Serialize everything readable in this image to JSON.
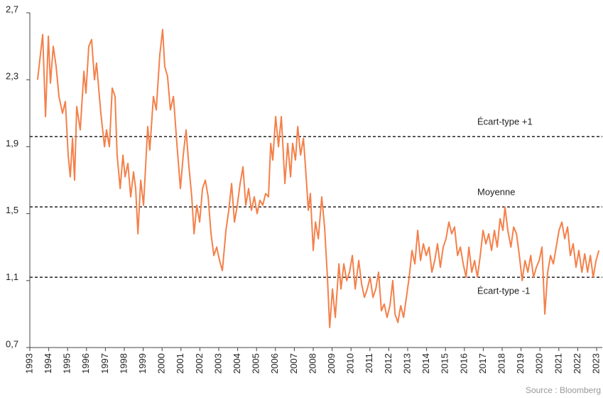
{
  "chart_data": {
    "type": "line",
    "source": "Source : Bloomberg",
    "xlim": [
      1993,
      2023.3
    ],
    "xticks": [
      1993,
      1994,
      1995,
      1996,
      1997,
      1998,
      1999,
      2000,
      2001,
      2002,
      2003,
      2004,
      2005,
      2006,
      2007,
      2008,
      2009,
      2010,
      2011,
      2012,
      2013,
      2014,
      2015,
      2016,
      2017,
      2018,
      2019,
      2020,
      2021,
      2022,
      2023
    ],
    "ylim": [
      0.7,
      2.7
    ],
    "yticks": [
      {
        "value": 0.7,
        "label": "0,7"
      },
      {
        "value": 1.1,
        "label": "1,1"
      },
      {
        "value": 1.5,
        "label": "1,5"
      },
      {
        "value": 1.9,
        "label": "1,9"
      },
      {
        "value": 2.3,
        "label": "2,3"
      },
      {
        "value": 2.7,
        "label": "2,7"
      }
    ],
    "reference_lines": [
      {
        "label": "Écart-type +1",
        "value": 1.96
      },
      {
        "label": "Moyenne",
        "value": 1.54
      },
      {
        "label": "Écart-type -1",
        "value": 1.12
      }
    ],
    "series": [
      {
        "color": "#f4804a",
        "x": [
          1993.41,
          1993.68,
          1993.83,
          1993.98,
          1994.09,
          1994.24,
          1994.39,
          1994.54,
          1994.73,
          1994.88,
          1995.03,
          1995.14,
          1995.26,
          1995.37,
          1995.48,
          1995.67,
          1995.86,
          1995.97,
          1996.12,
          1996.27,
          1996.42,
          1996.53,
          1996.76,
          1996.95,
          1997.06,
          1997.21,
          1997.36,
          1997.51,
          1997.62,
          1997.78,
          1997.93,
          1998.04,
          1998.19,
          1998.34,
          1998.49,
          1998.6,
          1998.72,
          1998.87,
          1999.02,
          1999.24,
          1999.35,
          1999.54,
          1999.69,
          1999.88,
          2000.03,
          2000.14,
          2000.29,
          2000.44,
          2000.6,
          2000.78,
          2000.97,
          2001.12,
          2001.27,
          2001.42,
          2001.57,
          2001.69,
          2001.84,
          2001.99,
          2002.14,
          2002.29,
          2002.44,
          2002.59,
          2002.74,
          2002.89,
          2003.04,
          2003.19,
          2003.38,
          2003.53,
          2003.68,
          2003.83,
          2003.98,
          2004.13,
          2004.28,
          2004.43,
          2004.58,
          2004.73,
          2004.88,
          2005.03,
          2005.18,
          2005.33,
          2005.48,
          2005.63,
          2005.75,
          2005.86,
          2006.01,
          2006.16,
          2006.31,
          2006.42,
          2006.5,
          2006.65,
          2006.8,
          2006.91,
          2007.06,
          2007.18,
          2007.33,
          2007.48,
          2007.59,
          2007.74,
          2007.85,
          2008.0,
          2008.12,
          2008.27,
          2008.45,
          2008.6,
          2008.75,
          2008.87,
          2009.02,
          2009.17,
          2009.36,
          2009.47,
          2009.62,
          2009.77,
          2009.92,
          2010.07,
          2010.22,
          2010.41,
          2010.56,
          2010.71,
          2010.86,
          2011.01,
          2011.16,
          2011.31,
          2011.46,
          2011.61,
          2011.76,
          2011.91,
          2012.06,
          2012.21,
          2012.33,
          2012.48,
          2012.63,
          2012.78,
          2012.93,
          2013.08,
          2013.23,
          2013.38,
          2013.53,
          2013.68,
          2013.83,
          2013.98,
          2014.13,
          2014.28,
          2014.43,
          2014.58,
          2014.73,
          2014.88,
          2015.03,
          2015.18,
          2015.33,
          2015.48,
          2015.64,
          2015.79,
          2015.94,
          2016.09,
          2016.24,
          2016.39,
          2016.54,
          2016.69,
          2016.84,
          2016.99,
          2017.14,
          2017.29,
          2017.44,
          2017.59,
          2017.74,
          2017.89,
          2018.04,
          2018.15,
          2018.3,
          2018.46,
          2018.61,
          2018.76,
          2018.91,
          2019.06,
          2019.21,
          2019.36,
          2019.51,
          2019.66,
          2019.81,
          2019.96,
          2020.11,
          2020.26,
          2020.41,
          2020.56,
          2020.71,
          2020.86,
          2021.01,
          2021.16,
          2021.31,
          2021.46,
          2021.61,
          2021.76,
          2021.91,
          2022.06,
          2022.22,
          2022.37,
          2022.52,
          2022.67,
          2022.82,
          2022.97,
          2023.12
        ],
        "values": [
          2.3,
          2.57,
          2.08,
          2.56,
          2.28,
          2.5,
          2.38,
          2.2,
          2.1,
          2.17,
          1.85,
          1.72,
          1.95,
          1.7,
          2.14,
          2.0,
          2.35,
          2.22,
          2.5,
          2.54,
          2.3,
          2.4,
          2.1,
          1.9,
          2.0,
          1.9,
          2.25,
          2.2,
          1.85,
          1.65,
          1.85,
          1.72,
          1.8,
          1.6,
          1.75,
          1.65,
          1.38,
          1.7,
          1.55,
          2.02,
          1.88,
          2.2,
          2.12,
          2.45,
          2.6,
          2.38,
          2.32,
          2.12,
          2.2,
          1.92,
          1.65,
          1.85,
          2.0,
          1.78,
          1.6,
          1.38,
          1.55,
          1.45,
          1.65,
          1.7,
          1.6,
          1.38,
          1.25,
          1.3,
          1.22,
          1.16,
          1.4,
          1.52,
          1.68,
          1.45,
          1.55,
          1.68,
          1.78,
          1.55,
          1.65,
          1.52,
          1.6,
          1.5,
          1.58,
          1.55,
          1.62,
          1.6,
          1.92,
          1.82,
          2.08,
          1.9,
          2.08,
          1.85,
          1.68,
          1.92,
          1.72,
          1.92,
          1.82,
          2.02,
          1.85,
          1.95,
          1.78,
          1.52,
          1.62,
          1.28,
          1.45,
          1.35,
          1.6,
          1.42,
          1.12,
          0.82,
          1.05,
          0.88,
          1.2,
          1.05,
          1.2,
          1.1,
          1.15,
          1.25,
          1.05,
          1.22,
          1.08,
          1.0,
          1.05,
          1.12,
          1.0,
          1.05,
          1.15,
          0.92,
          0.96,
          0.88,
          0.95,
          1.1,
          0.9,
          0.85,
          0.95,
          0.88,
          1.0,
          1.12,
          1.28,
          1.2,
          1.4,
          1.22,
          1.32,
          1.25,
          1.3,
          1.15,
          1.22,
          1.32,
          1.18,
          1.3,
          1.35,
          1.45,
          1.38,
          1.42,
          1.25,
          1.3,
          1.2,
          1.12,
          1.3,
          1.15,
          1.22,
          1.12,
          1.25,
          1.4,
          1.32,
          1.38,
          1.28,
          1.4,
          1.3,
          1.47,
          1.4,
          1.54,
          1.4,
          1.3,
          1.42,
          1.38,
          1.25,
          1.1,
          1.22,
          1.15,
          1.25,
          1.12,
          1.18,
          1.22,
          1.3,
          0.9,
          1.15,
          1.25,
          1.2,
          1.3,
          1.4,
          1.45,
          1.35,
          1.42,
          1.25,
          1.32,
          1.18,
          1.28,
          1.15,
          1.26,
          1.15,
          1.25,
          1.12,
          1.22,
          1.28
        ]
      }
    ]
  }
}
